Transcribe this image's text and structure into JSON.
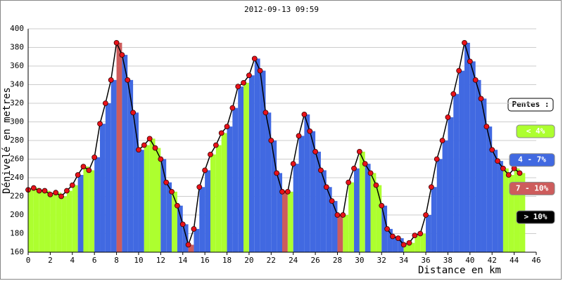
{
  "chart_data": {
    "type": "elevation-profile",
    "title": "2012-09-13 09:59",
    "x_label": "Distance en km",
    "y_label": "Dénivelé en metres",
    "xlim": [
      0,
      46
    ],
    "xticks": [
      0,
      2,
      4,
      6,
      8,
      10,
      12,
      14,
      16,
      18,
      20,
      22,
      24,
      26,
      28,
      30,
      32,
      34,
      36,
      38,
      40,
      42,
      44,
      46
    ],
    "ylim": [
      160,
      400
    ],
    "yticks": [
      160,
      180,
      200,
      220,
      240,
      260,
      280,
      300,
      320,
      340,
      360,
      380,
      400
    ],
    "grid": true,
    "point_color": "#e8121a",
    "x": [
      0,
      0.5,
      1,
      1.5,
      2,
      2.5,
      3,
      3.5,
      4,
      4.5,
      5,
      5.5,
      6,
      6.5,
      7,
      7.5,
      8,
      8.5,
      9,
      9.5,
      10,
      10.5,
      11,
      11.5,
      12,
      12.5,
      13,
      13.5,
      14,
      14.5,
      15,
      15.5,
      16,
      16.5,
      17,
      17.5,
      18,
      18.5,
      19,
      19.5,
      20,
      20.5,
      21,
      21.5,
      22,
      22.5,
      23,
      23.5,
      24,
      24.5,
      25,
      25.5,
      26,
      26.5,
      27,
      27.5,
      28,
      28.5,
      29,
      29.5,
      30,
      30.5,
      31,
      31.5,
      32,
      32.5,
      33,
      33.5,
      34,
      34.5,
      35,
      35.5,
      36,
      36.5,
      37,
      37.5,
      38,
      38.5,
      39,
      39.5,
      40,
      40.5,
      41,
      41.5,
      42,
      42.5,
      43,
      43.5,
      44,
      44.5
    ],
    "values": [
      227,
      229,
      226,
      226,
      222,
      224,
      220,
      226,
      232,
      243,
      252,
      248,
      262,
      298,
      320,
      345,
      385,
      372,
      345,
      310,
      270,
      275,
      282,
      272,
      260,
      235,
      225,
      210,
      190,
      168,
      185,
      230,
      248,
      265,
      275,
      288,
      295,
      315,
      338,
      342,
      350,
      368,
      355,
      310,
      280,
      245,
      225,
      225,
      255,
      285,
      308,
      290,
      268,
      248,
      230,
      215,
      200,
      200,
      235,
      250,
      268,
      255,
      245,
      232,
      210,
      185,
      177,
      175,
      168,
      170,
      178,
      180,
      200,
      230,
      260,
      280,
      305,
      330,
      355,
      385,
      365,
      345,
      325,
      295,
      270,
      258,
      250,
      243,
      250,
      245
    ],
    "slope_class": [
      0,
      0,
      0,
      0,
      0,
      0,
      0,
      0,
      0,
      1,
      0,
      0,
      1,
      1,
      1,
      1,
      2,
      1,
      1,
      1,
      1,
      0,
      0,
      0,
      1,
      1,
      0,
      1,
      1,
      2,
      1,
      1,
      1,
      0,
      0,
      0,
      1,
      1,
      1,
      0,
      1,
      1,
      1,
      1,
      1,
      1,
      2,
      0,
      1,
      1,
      1,
      1,
      1,
      1,
      1,
      1,
      2,
      0,
      0,
      1,
      0,
      1,
      0,
      0,
      1,
      1,
      1,
      1,
      0,
      0,
      0,
      0,
      1,
      1,
      1,
      1,
      1,
      1,
      1,
      1,
      1,
      1,
      1,
      1,
      1,
      1,
      0,
      0,
      0,
      0
    ],
    "legend_title": "Pentes :",
    "legend": [
      {
        "name": "< 4%",
        "color": "#adff2f",
        "text_color": "#ffffff"
      },
      {
        "name": "4 - 7%",
        "color": "#4169e1",
        "text_color": "#ffffff"
      },
      {
        "name": "7 - 10%",
        "color": "#cd5c5c",
        "text_color": "#ffffff"
      },
      {
        "name": "> 10%",
        "color": "#000000",
        "text_color": "#ffffff"
      }
    ]
  }
}
